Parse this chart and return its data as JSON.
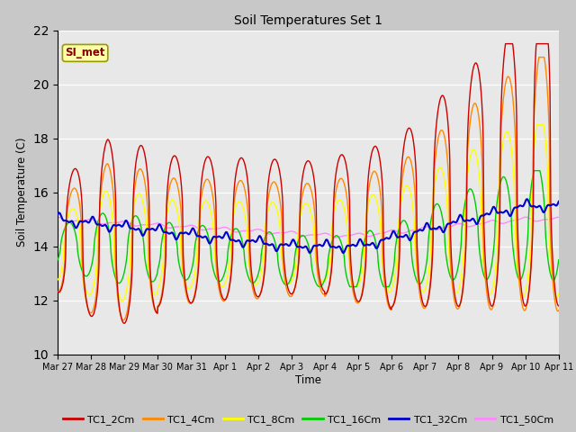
{
  "title": "Soil Temperatures Set 1",
  "xlabel": "Time",
  "ylabel": "Soil Temperature (C)",
  "ylim": [
    10,
    22
  ],
  "yticks": [
    10,
    12,
    14,
    16,
    18,
    20,
    22
  ],
  "annotation_text": "SI_met",
  "fig_bg": "#c8c8c8",
  "plot_bg": "#e8e8e8",
  "line_colors": {
    "TC1_2Cm": "#cc0000",
    "TC1_4Cm": "#ff8800",
    "TC1_8Cm": "#ffff00",
    "TC1_16Cm": "#00cc00",
    "TC1_32Cm": "#0000cc",
    "TC1_50Cm": "#ff88ff"
  },
  "xtick_labels": [
    "Mar 27",
    "Mar 28",
    "Mar 29",
    "Mar 30",
    "Mar 31",
    "Apr 1",
    "Apr 2",
    "Apr 3",
    "Apr 4",
    "Apr 5",
    "Apr 6",
    "Apr 7",
    "Apr 8",
    "Apr 9",
    "Apr 10",
    "Apr 11"
  ],
  "n_days": 15
}
